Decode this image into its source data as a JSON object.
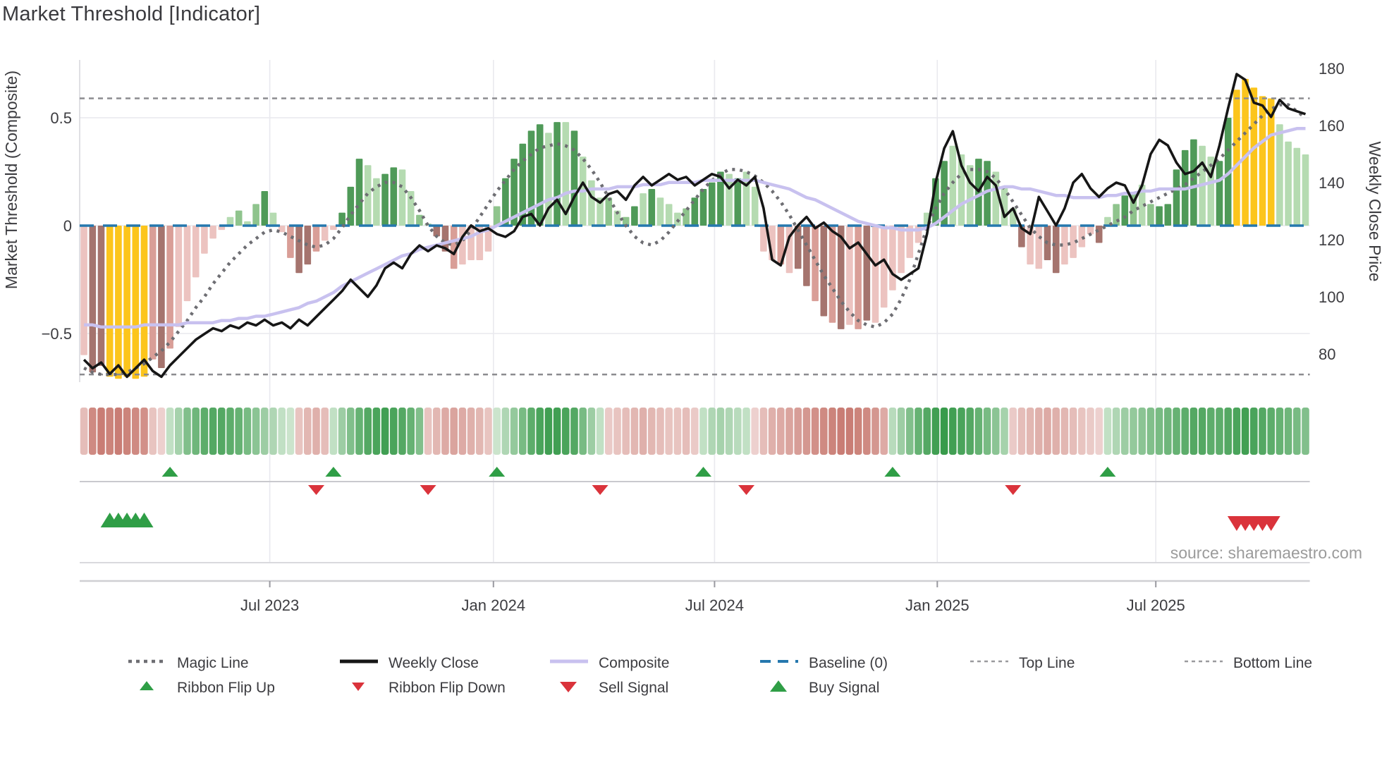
{
  "title": "Market Threshold [Indicator]",
  "source_credit": "source: sharemaestro.com",
  "axes": {
    "left_label": "Market Threshold (Composite)",
    "left_ticks": [
      {
        "label": "0.5",
        "value": 0.5
      },
      {
        "label": "0",
        "value": 0
      },
      {
        "label": "−0.5",
        "value": -0.5
      }
    ],
    "right_label": "Weekly Close Price",
    "right_ticks": [
      {
        "label": "180",
        "value": 180
      },
      {
        "label": "160",
        "value": 160
      },
      {
        "label": "140",
        "value": 140
      },
      {
        "label": "120",
        "value": 120
      },
      {
        "label": "100",
        "value": 100
      },
      {
        "label": "80",
        "value": 80
      }
    ],
    "x_ticks": [
      {
        "label": "Jul 2023",
        "week": 21.6
      },
      {
        "label": "Jan 2024",
        "week": 47.6
      },
      {
        "label": "Jul 2024",
        "week": 73.3
      },
      {
        "label": "Jan 2025",
        "week": 99.2
      },
      {
        "label": "Jul 2025",
        "week": 124.6
      }
    ]
  },
  "chart_data": {
    "type": "mixed",
    "title": "Market Threshold [Indicator]",
    "ylabel_left": "Market Threshold (Composite)",
    "ylabel_right": "Weekly Close Price",
    "ylim_left": [
      -0.78,
      0.77
    ],
    "ylim_right": [
      76,
      183
    ],
    "grid": true,
    "legend_position": "bottom",
    "reference_lines": {
      "baseline_value": 0,
      "top_line_value": 0.59,
      "bottom_line_value": -0.69
    },
    "weeks": 143,
    "series": [
      {
        "name": "Market Threshold",
        "type": "bar",
        "axis": "left",
        "values": [
          -0.6,
          -0.68,
          -0.65,
          -0.7,
          -0.71,
          -0.7,
          -0.71,
          -0.7,
          -0.62,
          -0.66,
          -0.57,
          -0.47,
          -0.35,
          -0.24,
          -0.13,
          -0.06,
          -0.02,
          0.04,
          0.07,
          0.02,
          0.1,
          0.16,
          0.06,
          -0.03,
          -0.15,
          -0.22,
          -0.18,
          -0.12,
          -0.07,
          -0.02,
          0.06,
          0.18,
          0.31,
          0.28,
          0.22,
          0.24,
          0.27,
          0.26,
          0.16,
          0.05,
          0.01,
          -0.05,
          -0.12,
          -0.2,
          -0.18,
          -0.16,
          -0.16,
          -0.12,
          0.09,
          0.22,
          0.31,
          0.38,
          0.44,
          0.47,
          0.43,
          0.48,
          0.48,
          0.44,
          0.32,
          0.21,
          0.13,
          0.13,
          0.07,
          0.04,
          0.09,
          0.15,
          0.17,
          0.13,
          0.1,
          0.06,
          0.08,
          0.13,
          0.17,
          0.2,
          0.25,
          0.24,
          0.22,
          0.25,
          0.18,
          -0.12,
          -0.16,
          -0.18,
          -0.22,
          -0.2,
          -0.28,
          -0.35,
          -0.42,
          -0.45,
          -0.48,
          -0.46,
          -0.48,
          -0.44,
          -0.45,
          -0.38,
          -0.3,
          -0.22,
          -0.15,
          -0.08,
          0.06,
          0.22,
          0.3,
          0.37,
          0.33,
          0.28,
          0.31,
          0.3,
          0.25,
          0.18,
          0.08,
          -0.1,
          -0.18,
          -0.2,
          -0.16,
          -0.22,
          -0.18,
          -0.15,
          -0.1,
          -0.04,
          -0.08,
          0.04,
          0.1,
          0.14,
          0.15,
          0.19,
          0.1,
          0.09,
          0.1,
          0.26,
          0.35,
          0.4,
          0.37,
          0.32,
          0.3,
          0.5,
          0.63,
          0.68,
          0.64,
          0.6,
          0.59,
          0.47,
          0.39,
          0.36,
          0.33
        ],
        "styles": [
          "p1",
          "p3",
          "p3",
          "y",
          "y",
          "y",
          "y",
          "y",
          "p2",
          "p3",
          "p2",
          "p1",
          "p1",
          "p1",
          "p1",
          "p1",
          "p1",
          "g1",
          "g2",
          "g1",
          "g2",
          "g3",
          "g1",
          "p1",
          "p2",
          "p3",
          "p3",
          "p2",
          "p1",
          "p1",
          "g3",
          "g3",
          "g3",
          "g1",
          "g1",
          "g3",
          "g3",
          "g1",
          "g1",
          "g2",
          "g1",
          "p3",
          "p3",
          "p2",
          "p1",
          "p1",
          "p1",
          "p1",
          "g2",
          "g3",
          "g3",
          "g3",
          "g3",
          "g3",
          "g1",
          "g3",
          "g1",
          "g3",
          "g1",
          "g1",
          "g1",
          "g2",
          "g1",
          "g2",
          "g3",
          "g1",
          "g3",
          "g1",
          "g1",
          "g1",
          "g2",
          "g3",
          "g3",
          "g3",
          "g3",
          "g1",
          "g3",
          "g1",
          "g1",
          "p1",
          "p1",
          "p2",
          "p1",
          "p3",
          "p3",
          "p2",
          "p3",
          "p2",
          "p3",
          "p1",
          "p2",
          "p3",
          "p1",
          "p1",
          "p1",
          "p1",
          "p1",
          "p1",
          "g1",
          "g3",
          "g3",
          "g1",
          "g1",
          "g1",
          "g3",
          "g3",
          "g1",
          "g1",
          "g1",
          "p3",
          "p1",
          "p1",
          "p3",
          "p3",
          "p1",
          "p1",
          "p1",
          "p1",
          "p3",
          "g1",
          "g2",
          "g3",
          "g2",
          "g1",
          "g2",
          "g3",
          "g3",
          "g3",
          "g3",
          "g3",
          "g1",
          "g1",
          "g3",
          "g3",
          "y",
          "y",
          "y",
          "y",
          "y",
          "g1",
          "g1",
          "g1",
          "g1"
        ]
      },
      {
        "name": "Weekly Close",
        "type": "line",
        "axis": "right",
        "values": [
          78,
          75,
          77,
          73,
          76,
          72,
          75,
          78,
          74,
          72,
          76,
          79,
          82,
          85,
          87,
          89,
          88,
          90,
          89,
          91,
          90,
          92,
          90,
          91,
          89,
          92,
          90,
          93,
          96,
          99,
          102,
          106,
          103,
          100,
          104,
          110,
          112,
          110,
          115,
          118,
          116,
          118,
          117,
          115,
          121,
          125,
          123,
          124,
          122,
          121,
          123,
          128,
          129,
          125,
          131,
          134,
          129,
          135,
          140,
          135,
          133,
          136,
          137,
          134,
          139,
          142,
          139,
          141,
          143,
          141,
          142,
          139,
          141,
          143,
          142,
          138,
          141,
          139,
          142,
          131,
          113,
          111,
          121,
          125,
          128,
          124,
          126,
          123,
          121,
          117,
          119,
          115,
          111,
          113,
          108,
          106,
          108,
          110,
          122,
          140,
          152,
          158,
          146,
          140,
          137,
          142,
          139,
          128,
          131,
          124,
          122,
          135,
          130,
          125,
          131,
          140,
          143,
          138,
          135,
          138,
          140,
          139,
          133,
          139,
          150,
          155,
          153,
          147,
          143,
          144,
          147,
          142,
          153,
          166,
          178,
          176,
          168,
          167,
          163,
          169,
          166,
          165,
          164
        ]
      },
      {
        "name": "Composite",
        "type": "line",
        "axis": "left",
        "values": [
          -0.46,
          -0.46,
          -0.47,
          -0.47,
          -0.47,
          -0.47,
          -0.47,
          -0.46,
          -0.46,
          -0.46,
          -0.46,
          -0.46,
          -0.45,
          -0.45,
          -0.45,
          -0.45,
          -0.44,
          -0.44,
          -0.43,
          -0.43,
          -0.42,
          -0.42,
          -0.41,
          -0.4,
          -0.39,
          -0.38,
          -0.36,
          -0.35,
          -0.33,
          -0.31,
          -0.28,
          -0.26,
          -0.24,
          -0.22,
          -0.2,
          -0.18,
          -0.16,
          -0.14,
          -0.13,
          -0.11,
          -0.1,
          -0.09,
          -0.08,
          -0.07,
          -0.06,
          -0.05,
          -0.03,
          -0.02,
          0.0,
          0.02,
          0.04,
          0.06,
          0.08,
          0.1,
          0.12,
          0.13,
          0.15,
          0.16,
          0.16,
          0.17,
          0.17,
          0.17,
          0.18,
          0.18,
          0.18,
          0.19,
          0.19,
          0.19,
          0.2,
          0.2,
          0.2,
          0.2,
          0.21,
          0.21,
          0.21,
          0.21,
          0.21,
          0.21,
          0.21,
          0.2,
          0.19,
          0.18,
          0.17,
          0.15,
          0.13,
          0.12,
          0.1,
          0.08,
          0.06,
          0.04,
          0.02,
          0.01,
          0.0,
          -0.01,
          -0.01,
          -0.02,
          -0.02,
          -0.02,
          -0.01,
          0.01,
          0.04,
          0.07,
          0.1,
          0.12,
          0.14,
          0.16,
          0.17,
          0.18,
          0.18,
          0.17,
          0.17,
          0.16,
          0.15,
          0.14,
          0.14,
          0.13,
          0.13,
          0.13,
          0.13,
          0.14,
          0.14,
          0.15,
          0.15,
          0.16,
          0.16,
          0.17,
          0.17,
          0.17,
          0.17,
          0.18,
          0.19,
          0.2,
          0.21,
          0.24,
          0.28,
          0.32,
          0.36,
          0.39,
          0.42,
          0.43,
          0.44,
          0.45,
          0.45
        ]
      },
      {
        "name": "Magic Line",
        "type": "line",
        "axis": "left",
        "style": "dotted",
        "values": [
          -0.66,
          -0.68,
          -0.69,
          -0.69,
          -0.69,
          -0.68,
          -0.66,
          -0.64,
          -0.61,
          -0.58,
          -0.54,
          -0.49,
          -0.44,
          -0.38,
          -0.33,
          -0.27,
          -0.22,
          -0.17,
          -0.13,
          -0.09,
          -0.06,
          -0.03,
          -0.02,
          -0.03,
          -0.05,
          -0.07,
          -0.09,
          -0.1,
          -0.09,
          -0.06,
          -0.01,
          0.05,
          0.1,
          0.15,
          0.18,
          0.2,
          0.2,
          0.18,
          0.13,
          0.07,
          0.0,
          -0.05,
          -0.08,
          -0.09,
          -0.07,
          -0.02,
          0.04,
          0.1,
          0.16,
          0.21,
          0.26,
          0.3,
          0.33,
          0.36,
          0.37,
          0.38,
          0.37,
          0.35,
          0.31,
          0.26,
          0.2,
          0.13,
          0.06,
          0.0,
          -0.05,
          -0.08,
          -0.09,
          -0.07,
          -0.03,
          0.02,
          0.07,
          0.12,
          0.17,
          0.21,
          0.24,
          0.26,
          0.26,
          0.25,
          0.23,
          0.2,
          0.16,
          0.11,
          0.05,
          -0.02,
          -0.09,
          -0.16,
          -0.23,
          -0.29,
          -0.35,
          -0.4,
          -0.44,
          -0.46,
          -0.47,
          -0.45,
          -0.41,
          -0.34,
          -0.25,
          -0.13,
          -0.01,
          0.08,
          0.15,
          0.2,
          0.24,
          0.26,
          0.26,
          0.25,
          0.22,
          0.17,
          0.11,
          0.05,
          -0.01,
          -0.05,
          -0.08,
          -0.09,
          -0.09,
          -0.08,
          -0.06,
          -0.04,
          -0.02,
          0.0,
          0.02,
          0.04,
          0.07,
          0.09,
          0.11,
          0.13,
          0.15,
          0.17,
          0.19,
          0.22,
          0.25,
          0.28,
          0.31,
          0.35,
          0.39,
          0.43,
          0.47,
          0.51,
          0.54,
          0.56,
          0.56,
          0.53,
          0.5
        ]
      }
    ],
    "ribbon": [
      -0.35,
      -0.75,
      -0.85,
      -0.8,
      -0.85,
      -0.8,
      -0.75,
      -0.7,
      -0.3,
      -0.2,
      0.2,
      0.35,
      0.55,
      0.65,
      0.75,
      0.8,
      0.8,
      0.75,
      0.7,
      0.6,
      0.5,
      0.4,
      0.3,
      0.2,
      0.15,
      -0.3,
      -0.4,
      -0.45,
      -0.35,
      0.2,
      0.4,
      0.55,
      0.7,
      0.8,
      0.85,
      0.9,
      0.85,
      0.8,
      0.7,
      0.55,
      -0.3,
      -0.4,
      -0.5,
      -0.55,
      -0.5,
      -0.45,
      -0.4,
      -0.3,
      0.15,
      0.3,
      0.45,
      0.6,
      0.75,
      0.85,
      0.9,
      0.9,
      0.85,
      0.8,
      0.6,
      0.4,
      0.2,
      -0.25,
      -0.3,
      -0.35,
      -0.4,
      -0.45,
      -0.4,
      -0.35,
      -0.3,
      -0.3,
      -0.35,
      -0.25,
      0.2,
      0.3,
      0.35,
      0.3,
      0.25,
      0.2,
      -0.2,
      -0.35,
      -0.45,
      -0.5,
      -0.55,
      -0.6,
      -0.65,
      -0.7,
      -0.75,
      -0.8,
      -0.85,
      -0.85,
      -0.8,
      -0.75,
      -0.65,
      -0.5,
      0.25,
      0.4,
      0.55,
      0.7,
      0.8,
      0.9,
      0.95,
      0.9,
      0.85,
      0.8,
      0.7,
      0.6,
      0.5,
      0.35,
      -0.25,
      -0.35,
      -0.4,
      -0.45,
      -0.5,
      -0.45,
      -0.4,
      -0.35,
      -0.3,
      -0.25,
      -0.2,
      0.2,
      0.3,
      0.4,
      0.45,
      0.5,
      0.55,
      0.6,
      0.65,
      0.7,
      0.75,
      0.8,
      0.8,
      0.75,
      0.75,
      0.8,
      0.85,
      0.9,
      0.85,
      0.8,
      0.75,
      0.7,
      0.65,
      0.6,
      0.55
    ],
    "signals": {
      "ribbon_flip_up_weeks": [
        10,
        29,
        48,
        72,
        94,
        119
      ],
      "ribbon_flip_down_weeks": [
        27,
        40,
        60,
        77,
        108
      ],
      "buy_signal_weeks": [
        3,
        4,
        5,
        6,
        7
      ],
      "sell_signal_weeks": [
        134,
        135,
        136,
        137,
        138
      ]
    }
  },
  "colors": {
    "bar_light_red": "#ecc3c0",
    "bar_mid_red": "#d99e97",
    "bar_dark_red": "#a5746e",
    "bar_light_green": "#b5dbb1",
    "bar_mid_green": "#8fc48d",
    "bar_dark_green": "#4f9a58",
    "bar_gold": "#fcc51c",
    "weekly_close": "#161616",
    "composite": "#c8c1ef",
    "magic_line": "#6e6e73",
    "baseline": "#2578ae",
    "ref_dashed": "#8b8b8f",
    "signal_green": "#2f9e46",
    "signal_red": "#da333b",
    "grid": "#e9e9ee",
    "spine": "#d9d9dd",
    "axis_text": "#3c3c40",
    "source_text": "#9b9b9b",
    "ribbon_green_hi": "#2f9643",
    "ribbon_green_lo": "#e6f2e4",
    "ribbon_red_hi": "#c16a60",
    "ribbon_red_lo": "#f8eae9"
  },
  "legend": {
    "row1": [
      {
        "label": "Magic Line",
        "swatch": "magic"
      },
      {
        "label": "Weekly Close",
        "swatch": "close"
      },
      {
        "label": "Composite",
        "swatch": "composite"
      },
      {
        "label": "Baseline (0)",
        "swatch": "baseline"
      },
      {
        "label": "Top Line",
        "swatch": "refline"
      },
      {
        "label": "Bottom Line",
        "swatch": "refline"
      }
    ],
    "row2": [
      {
        "label": "Ribbon Flip Up",
        "swatch": "flip-up"
      },
      {
        "label": "Ribbon Flip Down",
        "swatch": "flip-down"
      },
      {
        "label": "Sell Signal",
        "swatch": "sell"
      },
      {
        "label": "Buy Signal",
        "swatch": "buy"
      }
    ]
  }
}
